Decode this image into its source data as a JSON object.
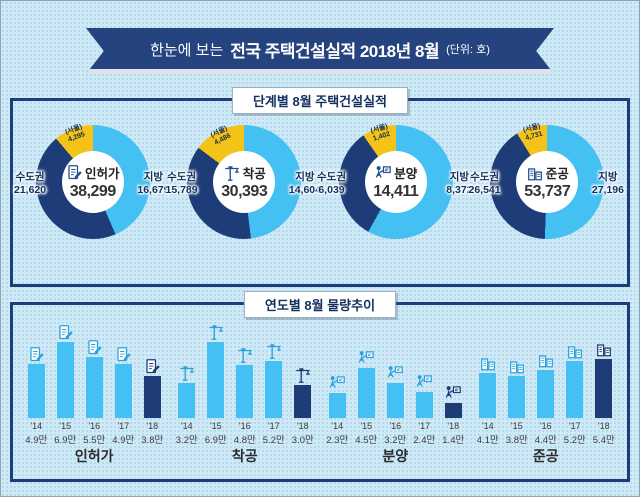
{
  "header": {
    "prefix": "한눈에 보는",
    "title": "전국 주택건설실적 2018년 8월",
    "unit": "(단위: 호)"
  },
  "legend": {
    "capital": "수도권",
    "province": "지방",
    "seoul": "(서울)"
  },
  "section_stage": {
    "title": "단계별 8월 주택건설실적",
    "charts": [
      {
        "name": "인허가",
        "icon": "permit-icon",
        "total": "38,299",
        "total_n": 38299,
        "capital": "21,620",
        "capital_n": 21620,
        "province": "16,679",
        "province_n": 16679,
        "seoul": "4,295",
        "seoul_n": 4295
      },
      {
        "name": "착공",
        "icon": "crane-icon",
        "total": "30,393",
        "total_n": 30393,
        "capital": "15,789",
        "capital_n": 15789,
        "province": "14,604",
        "province_n": 14604,
        "seoul": "4,486",
        "seoul_n": 4486
      },
      {
        "name": "분양",
        "icon": "sale-icon",
        "total": "14,411",
        "total_n": 14411,
        "capital": "6,039",
        "capital_n": 6039,
        "province": "8,372",
        "province_n": 8372,
        "seoul": "1,402",
        "seoul_n": 1402
      },
      {
        "name": "준공",
        "icon": "completion-icon",
        "total": "53,737",
        "total_n": 53737,
        "capital": "26,541",
        "capital_n": 26541,
        "province": "27,196",
        "province_n": 27196,
        "seoul": "4,731",
        "seoul_n": 4731
      }
    ]
  },
  "section_trend": {
    "title": "연도별 8월 물량추이",
    "groups": [
      {
        "name": "인허가",
        "icon": "permit-icon",
        "years": [
          "'14",
          "'15",
          "'16",
          "'17",
          "'18"
        ],
        "labels": [
          "4.9만",
          "6.9만",
          "5.5만",
          "4.9만",
          "3.8만"
        ],
        "values": [
          4.9,
          6.9,
          5.5,
          4.9,
          3.8
        ]
      },
      {
        "name": "착공",
        "icon": "crane-icon",
        "years": [
          "'14",
          "'15",
          "'16",
          "'17",
          "'18"
        ],
        "labels": [
          "3.2만",
          "6.9만",
          "4.8만",
          "5.2만",
          "3.0만"
        ],
        "values": [
          3.2,
          6.9,
          4.8,
          5.2,
          3.0
        ]
      },
      {
        "name": "분양",
        "icon": "sale-icon",
        "years": [
          "'14",
          "'15",
          "'16",
          "'17",
          "'18"
        ],
        "labels": [
          "2.3만",
          "4.5만",
          "3.2만",
          "2.4만",
          "1.4만"
        ],
        "values": [
          2.3,
          4.5,
          3.2,
          2.4,
          1.4
        ]
      },
      {
        "name": "준공",
        "icon": "completion-icon",
        "years": [
          "'14",
          "'15",
          "'16",
          "'17",
          "'18"
        ],
        "labels": [
          "4.1만",
          "3.8만",
          "4.4만",
          "5.2만",
          "5.4만"
        ],
        "values": [
          4.1,
          3.8,
          4.4,
          5.2,
          5.4
        ]
      }
    ]
  },
  "colors": {
    "navy": "#1e3c78",
    "light_blue": "#44c0f2",
    "yellow": "#f3c317",
    "background": "#cfe9f6",
    "ribbon": "#24437f"
  },
  "chart_data": [
    {
      "type": "pie",
      "title": "단계별 8월 주택건설실적 - 인허가",
      "labels": [
        "수도권",
        "지방",
        "(서울, 수도권 내)"
      ],
      "values": [
        21620,
        16679,
        4295
      ],
      "total": 38299,
      "colors": [
        "#1e3c78",
        "#44c0f2",
        "#f3c317"
      ]
    },
    {
      "type": "pie",
      "title": "단계별 8월 주택건설실적 - 착공",
      "labels": [
        "수도권",
        "지방",
        "(서울, 수도권 내)"
      ],
      "values": [
        15789,
        14604,
        4486
      ],
      "total": 30393,
      "colors": [
        "#1e3c78",
        "#44c0f2",
        "#f3c317"
      ]
    },
    {
      "type": "pie",
      "title": "단계별 8월 주택건설실적 - 분양",
      "labels": [
        "수도권",
        "지방",
        "(서울, 수도권 내)"
      ],
      "values": [
        6039,
        8372,
        1402
      ],
      "total": 14411,
      "colors": [
        "#1e3c78",
        "#44c0f2",
        "#f3c317"
      ]
    },
    {
      "type": "pie",
      "title": "단계별 8월 주택건설실적 - 준공",
      "labels": [
        "수도권",
        "지방",
        "(서울, 수도권 내)"
      ],
      "values": [
        26541,
        27196,
        4731
      ],
      "total": 53737,
      "colors": [
        "#1e3c78",
        "#44c0f2",
        "#f3c317"
      ]
    },
    {
      "type": "bar",
      "title": "연도별 8월 물량추이 - 인허가",
      "categories": [
        "'14",
        "'15",
        "'16",
        "'17",
        "'18"
      ],
      "values": [
        4.9,
        6.9,
        5.5,
        4.9,
        3.8
      ],
      "unit": "만 호",
      "highlight_last": true
    },
    {
      "type": "bar",
      "title": "연도별 8월 물량추이 - 착공",
      "categories": [
        "'14",
        "'15",
        "'16",
        "'17",
        "'18"
      ],
      "values": [
        3.2,
        6.9,
        4.8,
        5.2,
        3.0
      ],
      "unit": "만 호",
      "highlight_last": true
    },
    {
      "type": "bar",
      "title": "연도별 8월 물량추이 - 분양",
      "categories": [
        "'14",
        "'15",
        "'16",
        "'17",
        "'18"
      ],
      "values": [
        2.3,
        4.5,
        3.2,
        2.4,
        1.4
      ],
      "unit": "만 호",
      "highlight_last": true
    },
    {
      "type": "bar",
      "title": "연도별 8월 물량추이 - 준공",
      "categories": [
        "'14",
        "'15",
        "'16",
        "'17",
        "'18"
      ],
      "values": [
        4.1,
        3.8,
        4.4,
        5.2,
        5.4
      ],
      "unit": "만 호",
      "highlight_last": true
    }
  ]
}
